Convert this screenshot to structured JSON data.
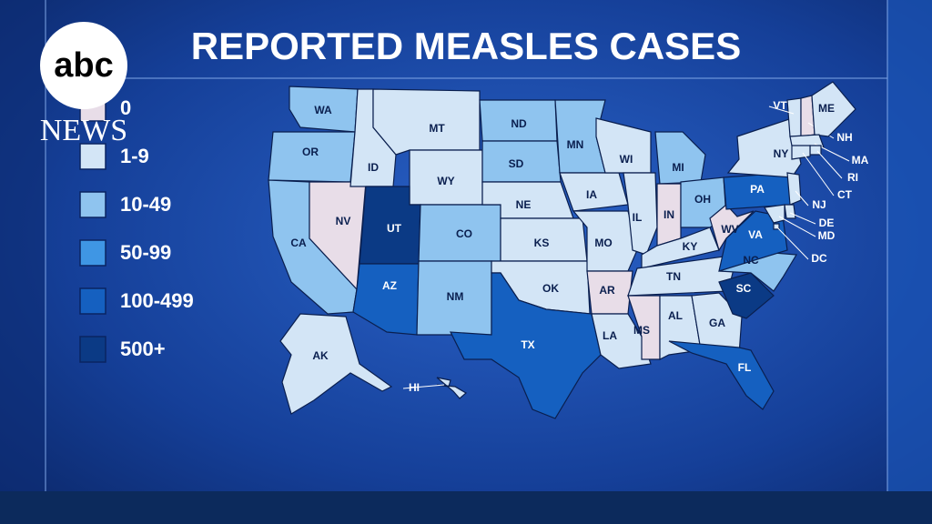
{
  "title": "REPORTED MEASLES CASES",
  "logo": {
    "mark": "abc",
    "brand": "NEWS"
  },
  "legend": [
    {
      "label": "0",
      "color": "#e8dde8"
    },
    {
      "label": "1-9",
      "color": "#d3e5f6"
    },
    {
      "label": "10-49",
      "color": "#8fc4ef"
    },
    {
      "label": "50-99",
      "color": "#3f96e4"
    },
    {
      "label": "100-499",
      "color": "#1560c0"
    },
    {
      "label": "500+",
      "color": "#0b3a85"
    }
  ],
  "states": [
    {
      "abbr": "WA",
      "level": 2
    },
    {
      "abbr": "OR",
      "level": 2
    },
    {
      "abbr": "CA",
      "level": 2
    },
    {
      "abbr": "NV",
      "level": 0
    },
    {
      "abbr": "ID",
      "level": 1
    },
    {
      "abbr": "MT",
      "level": 1
    },
    {
      "abbr": "WY",
      "level": 1
    },
    {
      "abbr": "UT",
      "level": 5
    },
    {
      "abbr": "AZ",
      "level": 4
    },
    {
      "abbr": "CO",
      "level": 2
    },
    {
      "abbr": "NM",
      "level": 2
    },
    {
      "abbr": "ND",
      "level": 2
    },
    {
      "abbr": "SD",
      "level": 2
    },
    {
      "abbr": "NE",
      "level": 1
    },
    {
      "abbr": "KS",
      "level": 1
    },
    {
      "abbr": "OK",
      "level": 1
    },
    {
      "abbr": "TX",
      "level": 4
    },
    {
      "abbr": "MN",
      "level": 2
    },
    {
      "abbr": "IA",
      "level": 1
    },
    {
      "abbr": "MO",
      "level": 1
    },
    {
      "abbr": "AR",
      "level": 0
    },
    {
      "abbr": "LA",
      "level": 1
    },
    {
      "abbr": "WI",
      "level": 1
    },
    {
      "abbr": "IL",
      "level": 1
    },
    {
      "abbr": "MI",
      "level": 2
    },
    {
      "abbr": "IN",
      "level": 0
    },
    {
      "abbr": "OH",
      "level": 2
    },
    {
      "abbr": "KY",
      "level": 1
    },
    {
      "abbr": "TN",
      "level": 1
    },
    {
      "abbr": "MS",
      "level": 0
    },
    {
      "abbr": "AL",
      "level": 1
    },
    {
      "abbr": "GA",
      "level": 1
    },
    {
      "abbr": "FL",
      "level": 4
    },
    {
      "abbr": "SC",
      "level": 5
    },
    {
      "abbr": "NC",
      "level": 2
    },
    {
      "abbr": "VA",
      "level": 4
    },
    {
      "abbr": "WV",
      "level": 0
    },
    {
      "abbr": "PA",
      "level": 4
    },
    {
      "abbr": "NY",
      "level": 1
    },
    {
      "abbr": "VT",
      "level": 1
    },
    {
      "abbr": "NH",
      "level": 0
    },
    {
      "abbr": "ME",
      "level": 1
    },
    {
      "abbr": "MA",
      "level": 1
    },
    {
      "abbr": "RI",
      "level": 1
    },
    {
      "abbr": "CT",
      "level": 1
    },
    {
      "abbr": "NJ",
      "level": 1
    },
    {
      "abbr": "DE",
      "level": 1
    },
    {
      "abbr": "MD",
      "level": 1
    },
    {
      "abbr": "DC",
      "level": 1
    },
    {
      "abbr": "AK",
      "level": 1
    },
    {
      "abbr": "HI",
      "level": 1
    }
  ]
}
